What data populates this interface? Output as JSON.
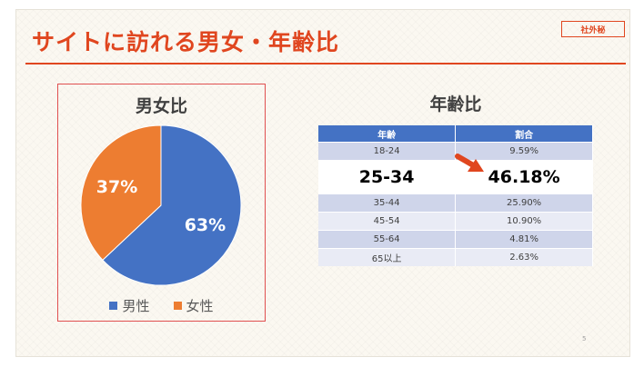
{
  "slide": {
    "title": "サイトに訪れる男女・年齢比",
    "confidential_label": "社外秘",
    "page_number": "5"
  },
  "gender": {
    "title": "男女比",
    "legend": [
      {
        "label": "男性",
        "color": "#4472c4"
      },
      {
        "label": "女性",
        "color": "#ed7d31"
      }
    ]
  },
  "age": {
    "title": "年齢比",
    "headers": [
      "年齢",
      "割合"
    ],
    "rows": [
      {
        "range": "18-24",
        "share": "9.59%"
      },
      {
        "range": "25-34",
        "share": "46.18%"
      },
      {
        "range": "35-44",
        "share": "25.90%"
      },
      {
        "range": "45-54",
        "share": "10.90%"
      },
      {
        "range": "55-64",
        "share": "4.81%"
      },
      {
        "range": "65以上",
        "share": "2.63%"
      }
    ],
    "highlight_color": "#e0461f"
  },
  "chart_data": [
    {
      "type": "pie",
      "title": "男女比",
      "categories": [
        "男性",
        "女性"
      ],
      "values": [
        63,
        37
      ],
      "labels": [
        "63%",
        "37%"
      ],
      "colors": [
        "#4472c4",
        "#ed7d31"
      ],
      "legend": "bottom"
    },
    {
      "type": "table",
      "title": "年齢比",
      "columns": [
        "年齢",
        "割合"
      ],
      "rows": [
        [
          "18-24",
          "9.59%"
        ],
        [
          "25-34",
          "46.18%"
        ],
        [
          "35-44",
          "25.90%"
        ],
        [
          "45-54",
          "10.90%"
        ],
        [
          "55-64",
          "4.81%"
        ],
        [
          "65以上",
          "2.63%"
        ]
      ]
    }
  ]
}
